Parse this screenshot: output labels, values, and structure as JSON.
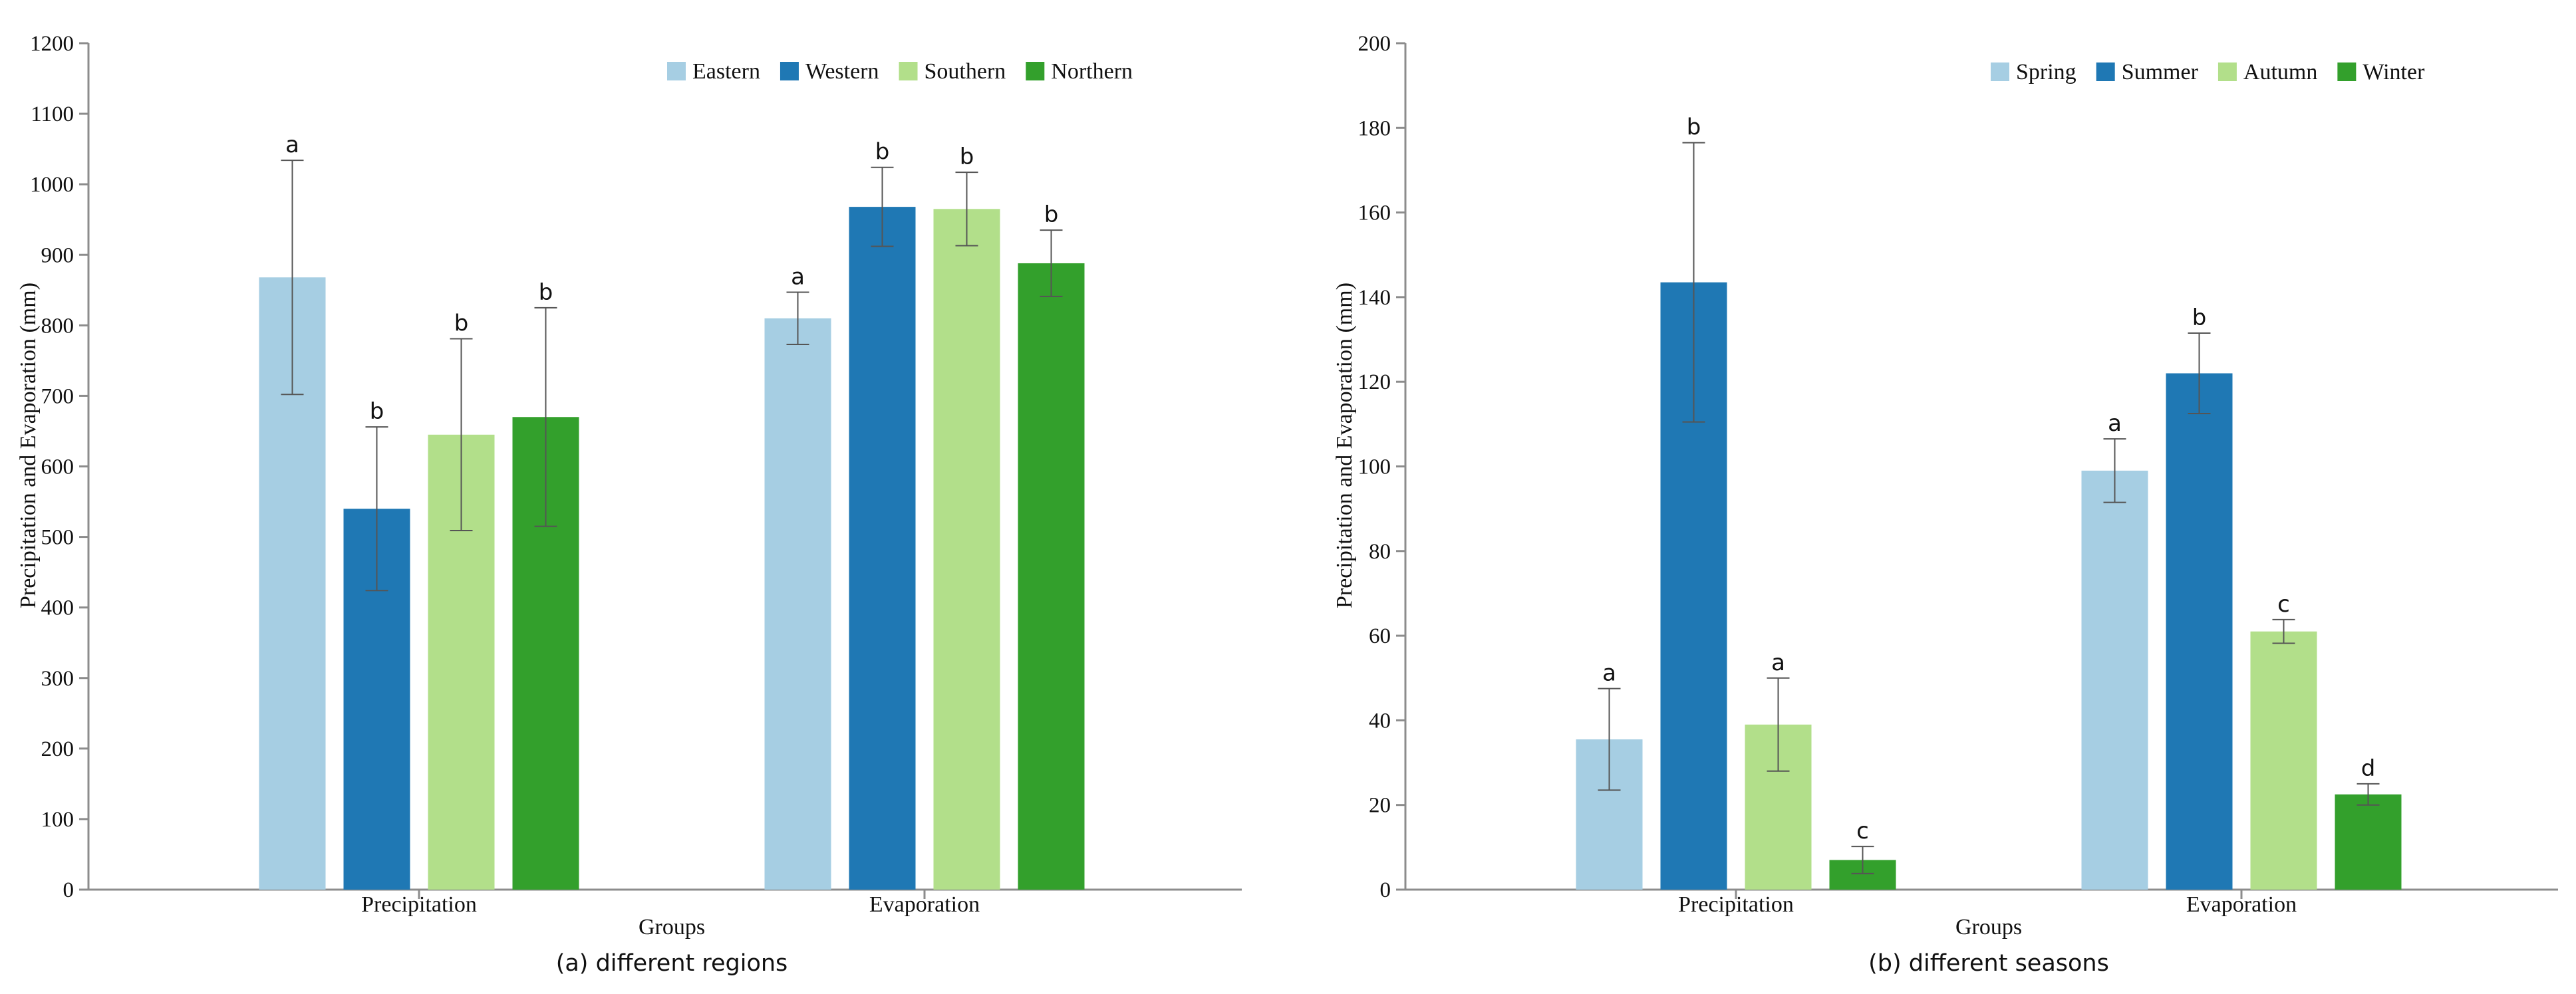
{
  "chart_data": [
    {
      "type": "bar",
      "caption": "(a) different regions",
      "xlabel": "Groups",
      "ylabel": "Precipitation and Evaporation (mm)",
      "ylim": [
        0,
        1200
      ],
      "yticks": [
        0,
        100,
        200,
        300,
        400,
        500,
        600,
        700,
        800,
        900,
        1000,
        1100,
        1200
      ],
      "grid": false,
      "legend_position": "top-right",
      "categories": [
        "Precipitation",
        "Evaporation"
      ],
      "series": [
        {
          "name": "Eastern",
          "color": "#a6cee3",
          "values": [
            868,
            810
          ],
          "errors": [
            166,
            37
          ],
          "letters": [
            "a",
            "a"
          ]
        },
        {
          "name": "Western",
          "color": "#1f78b4",
          "values": [
            540,
            968
          ],
          "errors": [
            116,
            56
          ],
          "letters": [
            "b",
            "b"
          ]
        },
        {
          "name": "Southern",
          "color": "#b2df8a",
          "values": [
            645,
            965
          ],
          "errors": [
            136,
            52
          ],
          "letters": [
            "b",
            "b"
          ]
        },
        {
          "name": "Northern",
          "color": "#33a02c",
          "values": [
            670,
            888
          ],
          "errors": [
            155,
            47
          ],
          "letters": [
            "b",
            "b"
          ]
        }
      ]
    },
    {
      "type": "bar",
      "caption": "(b) different seasons",
      "xlabel": "Groups",
      "ylabel": "Precipitation and Evaporation (mm)",
      "ylim": [
        0,
        200
      ],
      "yticks": [
        0,
        20,
        40,
        60,
        80,
        100,
        120,
        140,
        160,
        180,
        200
      ],
      "grid": false,
      "legend_position": "top-right",
      "categories": [
        "Precipitation",
        "Evaporation"
      ],
      "series": [
        {
          "name": "Spring",
          "color": "#a6cee3",
          "values": [
            35.5,
            99
          ],
          "errors": [
            12,
            7.5
          ],
          "letters": [
            "a",
            "a"
          ]
        },
        {
          "name": "Summer",
          "color": "#1f78b4",
          "values": [
            143.5,
            122
          ],
          "errors": [
            33,
            9.5
          ],
          "letters": [
            "b",
            "b"
          ]
        },
        {
          "name": "Autumn",
          "color": "#b2df8a",
          "values": [
            39,
            61
          ],
          "errors": [
            11,
            2.8
          ],
          "letters": [
            "a",
            "c"
          ]
        },
        {
          "name": "Winter",
          "color": "#33a02c",
          "values": [
            7,
            22.5
          ],
          "errors": [
            3.2,
            2.5
          ],
          "letters": [
            "c",
            "d"
          ]
        }
      ]
    }
  ]
}
